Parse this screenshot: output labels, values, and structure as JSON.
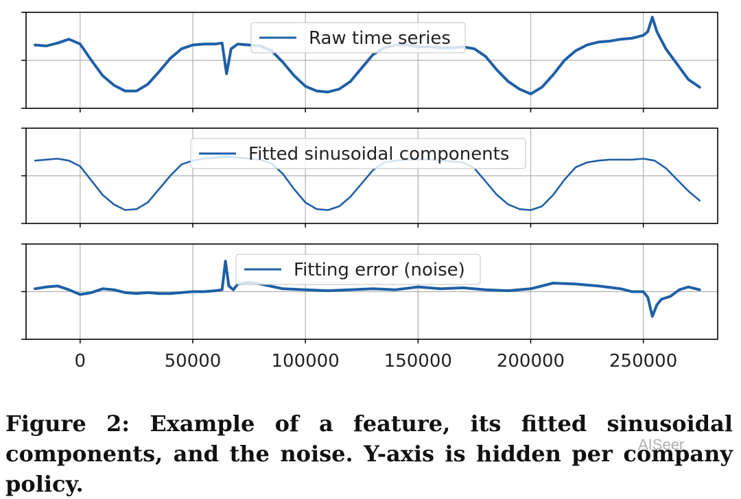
{
  "chart_data": [
    {
      "type": "line",
      "legend": "Raw time series",
      "legend_position": "top-center",
      "grid": true,
      "y_axis": "hidden",
      "xlim": [
        -24000,
        283000
      ],
      "ylim": [
        0,
        1
      ],
      "x": [
        -20000,
        -15000,
        -10000,
        -5000,
        0,
        5000,
        10000,
        15000,
        20000,
        25000,
        30000,
        35000,
        40000,
        45000,
        50000,
        55000,
        60000,
        63000,
        65000,
        67000,
        70000,
        75000,
        80000,
        85000,
        90000,
        95000,
        100000,
        105000,
        110000,
        115000,
        120000,
        125000,
        130000,
        135000,
        140000,
        145000,
        150000,
        155000,
        160000,
        165000,
        170000,
        175000,
        180000,
        185000,
        190000,
        195000,
        200000,
        205000,
        210000,
        215000,
        220000,
        225000,
        230000,
        235000,
        240000,
        245000,
        250000,
        252000,
        254000,
        256000,
        260000,
        265000,
        270000,
        275000
      ],
      "y": [
        0.66,
        0.65,
        0.68,
        0.72,
        0.67,
        0.5,
        0.34,
        0.24,
        0.18,
        0.18,
        0.25,
        0.38,
        0.52,
        0.62,
        0.66,
        0.67,
        0.67,
        0.68,
        0.36,
        0.62,
        0.67,
        0.66,
        0.65,
        0.6,
        0.48,
        0.34,
        0.23,
        0.18,
        0.17,
        0.2,
        0.28,
        0.42,
        0.56,
        0.63,
        0.66,
        0.66,
        0.64,
        0.64,
        0.63,
        0.63,
        0.64,
        0.62,
        0.54,
        0.4,
        0.28,
        0.2,
        0.15,
        0.22,
        0.35,
        0.5,
        0.6,
        0.66,
        0.69,
        0.7,
        0.72,
        0.73,
        0.76,
        0.8,
        0.95,
        0.8,
        0.62,
        0.46,
        0.3,
        0.22
      ]
    },
    {
      "type": "line",
      "legend": "Fitted sinusoidal components",
      "legend_position": "top-center",
      "grid": true,
      "y_axis": "hidden",
      "xlim": [
        -24000,
        283000
      ],
      "ylim": [
        0,
        1
      ],
      "x": [
        -20000,
        -15000,
        -10000,
        -5000,
        0,
        5000,
        10000,
        15000,
        20000,
        25000,
        30000,
        35000,
        40000,
        45000,
        50000,
        55000,
        60000,
        65000,
        70000,
        75000,
        80000,
        85000,
        90000,
        95000,
        100000,
        105000,
        110000,
        115000,
        120000,
        125000,
        130000,
        135000,
        140000,
        145000,
        150000,
        155000,
        160000,
        165000,
        170000,
        175000,
        180000,
        185000,
        190000,
        195000,
        200000,
        205000,
        210000,
        215000,
        220000,
        225000,
        230000,
        235000,
        240000,
        245000,
        250000,
        255000,
        260000,
        265000,
        270000,
        275000
      ],
      "y": [
        0.66,
        0.67,
        0.68,
        0.66,
        0.6,
        0.45,
        0.3,
        0.2,
        0.14,
        0.15,
        0.22,
        0.36,
        0.5,
        0.62,
        0.66,
        0.68,
        0.69,
        0.7,
        0.69,
        0.68,
        0.67,
        0.63,
        0.52,
        0.36,
        0.22,
        0.15,
        0.14,
        0.18,
        0.28,
        0.42,
        0.56,
        0.64,
        0.66,
        0.67,
        0.67,
        0.67,
        0.66,
        0.65,
        0.64,
        0.58,
        0.44,
        0.3,
        0.2,
        0.15,
        0.14,
        0.18,
        0.3,
        0.46,
        0.59,
        0.64,
        0.66,
        0.67,
        0.67,
        0.67,
        0.68,
        0.66,
        0.58,
        0.46,
        0.34,
        0.24
      ]
    },
    {
      "type": "line",
      "legend": "Fitting error (noise)",
      "legend_position": "top-center",
      "grid": true,
      "y_axis": "hidden",
      "xlim": [
        -24000,
        283000
      ],
      "ylim": [
        0,
        1
      ],
      "x": [
        -20000,
        -15000,
        -10000,
        -5000,
        0,
        5000,
        10000,
        15000,
        20000,
        25000,
        30000,
        35000,
        40000,
        45000,
        50000,
        55000,
        60000,
        63000,
        64500,
        66000,
        68000,
        70000,
        75000,
        80000,
        90000,
        100000,
        110000,
        120000,
        130000,
        140000,
        150000,
        160000,
        170000,
        180000,
        190000,
        200000,
        210000,
        220000,
        230000,
        240000,
        245000,
        250000,
        252000,
        254000,
        256000,
        258000,
        262000,
        266000,
        270000,
        275000
      ],
      "y": [
        0.53,
        0.55,
        0.56,
        0.52,
        0.47,
        0.49,
        0.53,
        0.52,
        0.49,
        0.48,
        0.49,
        0.48,
        0.48,
        0.49,
        0.5,
        0.5,
        0.51,
        0.52,
        0.82,
        0.56,
        0.52,
        0.58,
        0.6,
        0.58,
        0.53,
        0.52,
        0.51,
        0.52,
        0.53,
        0.52,
        0.55,
        0.53,
        0.54,
        0.52,
        0.51,
        0.53,
        0.59,
        0.58,
        0.56,
        0.53,
        0.5,
        0.5,
        0.44,
        0.24,
        0.36,
        0.42,
        0.45,
        0.52,
        0.55,
        0.52
      ]
    }
  ],
  "x_ticks": [
    0,
    50000,
    100000,
    150000,
    200000,
    250000
  ],
  "x_tick_labels": [
    "0",
    "50000",
    "100000",
    "150000",
    "200000",
    "250000"
  ],
  "line_color": "#1f5fa6",
  "caption": "Figure 2: Example of a feature, its fitted sinusoidal components, and the noise. Y-axis is hidden per company policy.",
  "watermark": "AISeer"
}
